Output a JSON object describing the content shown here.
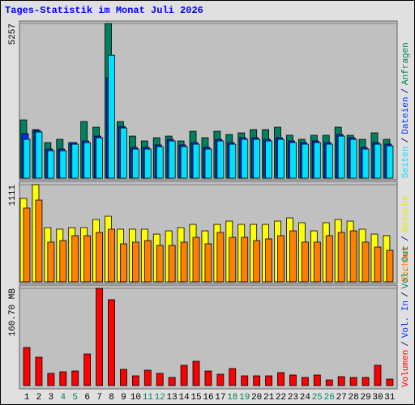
{
  "title": "Tages-Statistik im Monat Juli 2026",
  "chart_data": [
    {
      "type": "bar",
      "legend_separator": "/",
      "ylim": [
        0,
        5257
      ],
      "yticks": [
        5257
      ],
      "series": [
        {
          "name": "Anfragen",
          "color": "#008060",
          "values": [
            1980,
            1650,
            1210,
            1320,
            1210,
            1925,
            1733,
            5257,
            1925,
            1430,
            1265,
            1375,
            1430,
            1265,
            1595,
            1375,
            1595,
            1485,
            1540,
            1650,
            1650,
            1733,
            1458,
            1320,
            1458,
            1458,
            1733,
            1458,
            1320,
            1540,
            1320
          ]
        },
        {
          "name": "Dateien",
          "color": "#0030ff",
          "values": [
            1513,
            1620,
            990,
            990,
            1210,
            1265,
            1430,
            3410,
            1760,
            1045,
            1045,
            1130,
            1320,
            1130,
            1210,
            1045,
            1320,
            1210,
            1375,
            1375,
            1320,
            1375,
            1265,
            1210,
            1265,
            1210,
            1485,
            1375,
            1045,
            1210,
            1155
          ]
        },
        {
          "name": "Seiten",
          "color": "#00e0ff",
          "values": [
            1320,
            1568,
            935,
            935,
            1155,
            1210,
            1375,
            4180,
            1705,
            990,
            990,
            1073,
            1265,
            1073,
            1155,
            990,
            1265,
            1155,
            1320,
            1320,
            1265,
            1320,
            1210,
            1155,
            1210,
            1155,
            1430,
            1320,
            990,
            1155,
            1100
          ]
        }
      ]
    },
    {
      "type": "bar",
      "legend_separator": "/",
      "ylim": [
        0,
        1111
      ],
      "yticks": [
        1111
      ],
      "series": [
        {
          "name": "Besuche",
          "color": "#ffff00",
          "values": [
            954,
            1111,
            620,
            602,
            620,
            620,
            713,
            750,
            602,
            602,
            602,
            546,
            583,
            620,
            657,
            583,
            657,
            694,
            657,
            657,
            657,
            694,
            731,
            676,
            583,
            676,
            713,
            694,
            602,
            546,
            528
          ]
        },
        {
          "name": "Rechner",
          "color": "#ff8000",
          "values": [
            843,
            935,
            454,
            472,
            528,
            528,
            565,
            602,
            435,
            454,
            472,
            417,
            417,
            454,
            509,
            435,
            565,
            509,
            509,
            472,
            491,
            528,
            583,
            454,
            454,
            528,
            565,
            583,
            454,
            398,
            361
          ]
        }
      ]
    },
    {
      "type": "bar",
      "legend_separator": "/",
      "ylim": [
        0,
        160.7
      ],
      "yticks": [
        {
          "value": 160.7,
          "label": "160.70 MB"
        }
      ],
      "categories": [
        "1",
        "2",
        "3",
        "4",
        "5",
        "6",
        "7",
        "8",
        "9",
        "10",
        "11",
        "12",
        "13",
        "14",
        "15",
        "16",
        "17",
        "18",
        "19",
        "20",
        "21",
        "22",
        "23",
        "24",
        "25",
        "26",
        "27",
        "28",
        "29",
        "30",
        "31"
      ],
      "category_colors": [
        "#000000",
        "#000000",
        "#000000",
        "#008060",
        "#008060",
        "#000000",
        "#000000",
        "#000000",
        "#000000",
        "#000000",
        "#008060",
        "#008060",
        "#000000",
        "#000000",
        "#000000",
        "#000000",
        "#000000",
        "#008060",
        "#008060",
        "#000000",
        "#000000",
        "#000000",
        "#000000",
        "#000000",
        "#008060",
        "#008060",
        "#000000",
        "#000000",
        "#000000",
        "#000000",
        "#000000"
      ],
      "series": [
        {
          "name": "Vol. Out",
          "color": "#008060",
          "values": [
            0,
            0,
            0,
            0,
            0,
            0,
            0,
            0,
            0,
            0,
            0,
            0,
            0,
            0,
            0,
            0,
            0,
            0,
            0,
            0,
            0,
            0,
            0,
            0,
            0,
            0,
            0,
            0,
            0,
            0,
            0
          ]
        },
        {
          "name": "Vol. In",
          "color": "#0030ff",
          "values": [
            0,
            0,
            0,
            0,
            0,
            0,
            0,
            0,
            0,
            0,
            0,
            0,
            0,
            0,
            0,
            0,
            0,
            0,
            0,
            0,
            0,
            0,
            0,
            0,
            0,
            0,
            0,
            0,
            0,
            0,
            0
          ]
        },
        {
          "name": "Volumen",
          "color": "#ff0000",
          "values": [
            62.93,
            46.87,
            20.09,
            22.76,
            24.1,
            52.22,
            160.7,
            141.95,
            26.78,
            16.07,
            25.44,
            20.09,
            13.39,
            33.48,
            40.17,
            24.1,
            18.75,
            28.12,
            16.07,
            16.07,
            16.07,
            21.43,
            17.41,
            13.39,
            17.41,
            9.37,
            14.73,
            13.39,
            13.39,
            33.48,
            10.71
          ]
        }
      ]
    }
  ]
}
